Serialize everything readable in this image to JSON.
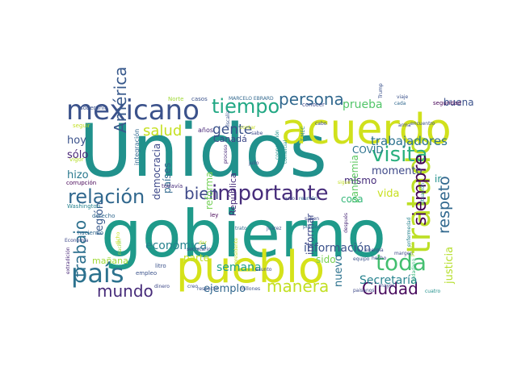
{
  "words": [
    {
      "text": "Unidos",
      "color": "#21918c"
    },
    {
      "text": "gobierno",
      "color": "#1f9a8a"
    },
    {
      "text": "acuerdo",
      "color": "#d0e11c"
    },
    {
      "text": "pueblo",
      "color": "#d5e21a"
    },
    {
      "text": "mexicano",
      "color": "#3b528b"
    },
    {
      "text": "tratado",
      "color": "#bddf26"
    },
    {
      "text": "país",
      "color": "#2c728e"
    },
    {
      "text": "importante",
      "color": "#472d7b"
    },
    {
      "text": "relación",
      "color": "#31688e"
    },
    {
      "text": "tiempo",
      "color": "#22a884"
    },
    {
      "text": "visita",
      "color": "#2ab07f"
    },
    {
      "text": "toda",
      "color": "#44bf70"
    },
    {
      "text": "persona",
      "color": "#31688e"
    },
    {
      "text": "bien",
      "color": "#3e4989"
    },
    {
      "text": "América",
      "color": "#38598c"
    },
    {
      "text": "manera",
      "color": "#c2df23"
    },
    {
      "text": "siempre",
      "color": "#440154"
    },
    {
      "text": "mundo",
      "color": "#472c7a"
    },
    {
      "text": "trabajo",
      "color": "#2d708e"
    },
    {
      "text": "Ciudad",
      "color": "#46085c"
    },
    {
      "text": "respeto",
      "color": "#31688e"
    },
    {
      "text": "salud",
      "color": "#c5e021"
    },
    {
      "text": "gente",
      "color": "#3b528b"
    },
    {
      "text": "trabajadores",
      "color": "#2c728e"
    },
    {
      "text": "prueba",
      "color": "#52c569"
    },
    {
      "text": "información",
      "color": "#3b528b"
    },
    {
      "text": "económica",
      "color": "#26828e"
    },
    {
      "text": "semana",
      "color": "#1fa187"
    },
    {
      "text": "Secretaría",
      "color": "#26828e"
    },
    {
      "text": "ejemplo",
      "color": "#31688e"
    },
    {
      "text": "justicia",
      "color": "#b5de2b"
    },
    {
      "text": "vida",
      "color": "#c8e020"
    },
    {
      "text": "nuevo",
      "color": "#2c728e"
    },
    {
      "text": "hoy",
      "color": "#3b528b"
    },
    {
      "text": "sólo",
      "color": "#482576"
    },
    {
      "text": "hizo",
      "color": "#2a788e"
    },
    {
      "text": "región",
      "color": "#38598c"
    },
    {
      "text": "momento",
      "color": "#3e4989"
    },
    {
      "text": "pandemia",
      "color": "#5ec962"
    },
    {
      "text": "reforma",
      "color": "#73d056"
    },
    {
      "text": "democracia",
      "color": "#3e4989"
    },
    {
      "text": "países",
      "color": "#31688e"
    },
    {
      "text": "COVID",
      "color": "#2c728e"
    },
    {
      "text": "buena",
      "color": "#3b528b"
    },
    {
      "text": "cosa",
      "color": "#35b779"
    },
    {
      "text": "mismo",
      "color": "#472d7b"
    },
    {
      "text": "informar",
      "color": "#3e4989"
    },
    {
      "text": "sido",
      "color": "#7ad151"
    },
    {
      "text": "ir",
      "color": "#21918c"
    },
    {
      "text": "parte",
      "color": "#c2df23"
    },
    {
      "text": "mañana",
      "color": "#a0da39"
    },
    {
      "text": "Canadá",
      "color": "#3e4989"
    },
    {
      "text": "República",
      "color": "#472d7b"
    },
    {
      "text": "años",
      "color": "#482878"
    },
    {
      "text": "integración",
      "color": "#31688e"
    },
    {
      "text": "soberanía",
      "color": "#3b528b"
    },
    {
      "text": "Norte",
      "color": "#a0da39"
    },
    {
      "text": "casos",
      "color": "#3b528b"
    },
    {
      "text": "MARCELO EBRARD",
      "color": "#31688e"
    },
    {
      "text": "fiscalía",
      "color": "#3b528b"
    },
    {
      "text": "conocer",
      "color": "#3e4989"
    },
    {
      "text": "Trump",
      "color": "#3b528b"
    },
    {
      "text": "seguridad",
      "color": "#440154"
    },
    {
      "text": "viaje",
      "color": "#3b528b"
    },
    {
      "text": "cada",
      "color": "#31688e"
    },
    {
      "text": "encuentro",
      "color": "#3b528b"
    },
    {
      "text": "seguir",
      "color": "#c2df23"
    },
    {
      "text": "vigor",
      "color": "#b5de2b"
    },
    {
      "text": "corrupción",
      "color": "#440154"
    },
    {
      "text": "Washington",
      "color": "#26828e"
    },
    {
      "text": "proceso",
      "color": "#482878"
    },
    {
      "text": "sabe",
      "color": "#3e4989"
    },
    {
      "text": "julio",
      "color": "#3e4989"
    },
    {
      "text": "cooperación",
      "color": "#21918c"
    },
    {
      "text": "comercial",
      "color": "#21918c"
    },
    {
      "text": "T-MEC",
      "color": "#26828e"
    },
    {
      "text": "cabo",
      "color": "#3e4989"
    },
    {
      "text": "arma",
      "color": "#3e4989"
    },
    {
      "text": "situación",
      "color": "#26828e"
    },
    {
      "text": "todavía",
      "color": "#472d7b"
    },
    {
      "text": "ley",
      "color": "#440154"
    },
    {
      "text": "acto",
      "color": "#3e4989"
    },
    {
      "text": "reunión",
      "color": "#31688e"
    },
    {
      "text": "después",
      "color": "#482878"
    },
    {
      "text": "trato",
      "color": "#31688e"
    },
    {
      "text": "Juárez",
      "color": "#3b528b"
    },
    {
      "text": "público",
      "color": "#31688e"
    },
    {
      "text": "saben",
      "color": "#3e4989"
    },
    {
      "text": "enfermedad",
      "color": "#26828e"
    },
    {
      "text": "margen",
      "color": "#3e4989"
    },
    {
      "text": "energía",
      "color": "#3e4989"
    },
    {
      "text": "punto",
      "color": "#b5de2b"
    },
    {
      "text": "ciudadano",
      "color": "#35b779"
    },
    {
      "text": "litro",
      "color": "#3b528b"
    },
    {
      "text": "asunto",
      "color": "#3e4989"
    },
    {
      "text": "respecto",
      "color": "#3b528b"
    },
    {
      "text": "millones",
      "color": "#3b528b"
    },
    {
      "text": "hecho",
      "color": "#3e4989"
    },
    {
      "text": "mayor",
      "color": "#3e4989"
    },
    {
      "text": "equipo",
      "color": "#3b528b"
    },
    {
      "text": "paisanos",
      "color": "#3e4989"
    },
    {
      "text": "cuatro",
      "color": "#21918c"
    },
    {
      "text": "creo",
      "color": "#3b528b"
    },
    {
      "text": "dinero",
      "color": "#3e4989"
    },
    {
      "text": "empleo",
      "color": "#3b528b"
    },
    {
      "text": "haciendo",
      "color": "#31688e"
    },
    {
      "text": "derecho",
      "color": "#31688e"
    },
    {
      "text": "Economía",
      "color": "#3e4989"
    },
    {
      "text": "extradición",
      "color": "#482878"
    },
    {
      "text": "secretario",
      "color": "#3e4989"
    },
    {
      "text": "dar",
      "color": "#c2df23"
    },
    {
      "text": "presidente",
      "color": "#c2df23"
    },
    {
      "text": "contar",
      "color": "#c8e020"
    },
    {
      "text": "sigue",
      "color": "#c2df23"
    },
    {
      "text": "dicho",
      "color": "#c8e020"
    },
    {
      "text": "nación",
      "color": "#a0da39"
    }
  ]
}
